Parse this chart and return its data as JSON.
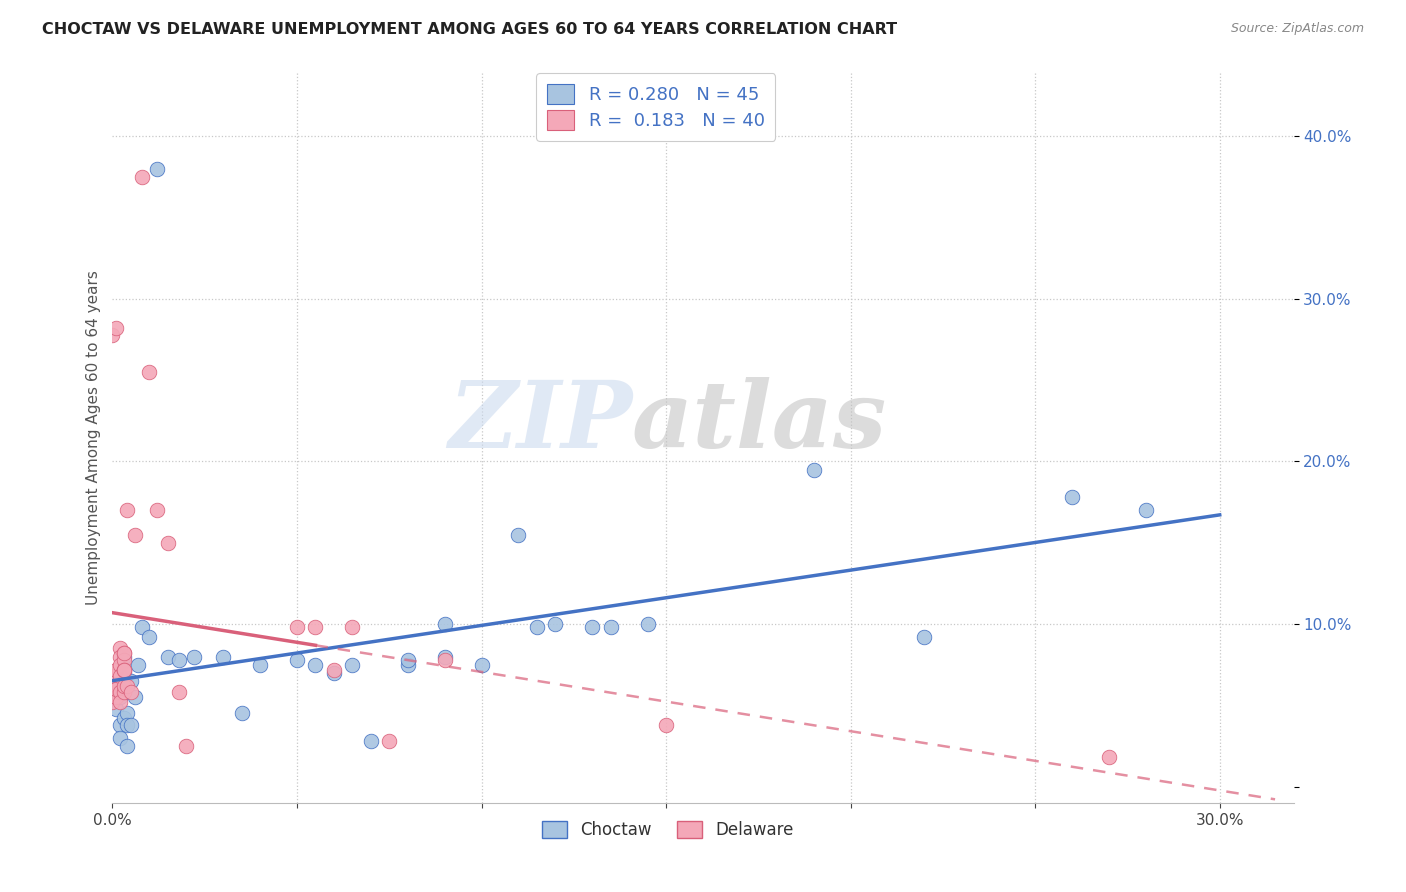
{
  "title": "CHOCTAW VS DELAWARE UNEMPLOYMENT AMONG AGES 60 TO 64 YEARS CORRELATION CHART",
  "source": "Source: ZipAtlas.com",
  "ylabel": "Unemployment Among Ages 60 to 64 years",
  "xlim": [
    0.0,
    0.32
  ],
  "ylim": [
    -0.01,
    0.44
  ],
  "xticks": [
    0.0,
    0.05,
    0.1,
    0.15,
    0.2,
    0.25,
    0.3
  ],
  "yticks": [
    0.0,
    0.1,
    0.2,
    0.3,
    0.4
  ],
  "background_color": "#ffffff",
  "grid_color": "#c8c8c8",
  "watermark_zip": "ZIP",
  "watermark_atlas": "atlas",
  "choctaw_color": "#a8c4e0",
  "delaware_color": "#f4a8b8",
  "choctaw_line_color": "#4472c4",
  "delaware_line_color": "#d9607a",
  "R_choctaw": 0.28,
  "N_choctaw": 45,
  "R_delaware": 0.183,
  "N_delaware": 40,
  "choctaw_points": [
    [
      0.001,
      0.058
    ],
    [
      0.001,
      0.048
    ],
    [
      0.002,
      0.038
    ],
    [
      0.002,
      0.03
    ],
    [
      0.002,
      0.055
    ],
    [
      0.003,
      0.058
    ],
    [
      0.003,
      0.042
    ],
    [
      0.003,
      0.07
    ],
    [
      0.003,
      0.08
    ],
    [
      0.004,
      0.045
    ],
    [
      0.004,
      0.038
    ],
    [
      0.004,
      0.025
    ],
    [
      0.005,
      0.038
    ],
    [
      0.005,
      0.065
    ],
    [
      0.006,
      0.055
    ],
    [
      0.007,
      0.075
    ],
    [
      0.008,
      0.098
    ],
    [
      0.01,
      0.092
    ],
    [
      0.012,
      0.38
    ],
    [
      0.015,
      0.08
    ],
    [
      0.018,
      0.078
    ],
    [
      0.022,
      0.08
    ],
    [
      0.03,
      0.08
    ],
    [
      0.035,
      0.045
    ],
    [
      0.04,
      0.075
    ],
    [
      0.05,
      0.078
    ],
    [
      0.055,
      0.075
    ],
    [
      0.06,
      0.07
    ],
    [
      0.065,
      0.075
    ],
    [
      0.07,
      0.028
    ],
    [
      0.08,
      0.075
    ],
    [
      0.08,
      0.078
    ],
    [
      0.09,
      0.08
    ],
    [
      0.09,
      0.1
    ],
    [
      0.1,
      0.075
    ],
    [
      0.11,
      0.155
    ],
    [
      0.115,
      0.098
    ],
    [
      0.12,
      0.1
    ],
    [
      0.13,
      0.098
    ],
    [
      0.135,
      0.098
    ],
    [
      0.145,
      0.1
    ],
    [
      0.19,
      0.195
    ],
    [
      0.22,
      0.092
    ],
    [
      0.26,
      0.178
    ],
    [
      0.28,
      0.17
    ]
  ],
  "delaware_points": [
    [
      0.0,
      0.278
    ],
    [
      0.0,
      0.068
    ],
    [
      0.0,
      0.052
    ],
    [
      0.001,
      0.282
    ],
    [
      0.001,
      0.06
    ],
    [
      0.001,
      0.055
    ],
    [
      0.001,
      0.072
    ],
    [
      0.001,
      0.06
    ],
    [
      0.002,
      0.058
    ],
    [
      0.002,
      0.052
    ],
    [
      0.002,
      0.085
    ],
    [
      0.002,
      0.08
    ],
    [
      0.002,
      0.075
    ],
    [
      0.002,
      0.068
    ],
    [
      0.003,
      0.058
    ],
    [
      0.003,
      0.072
    ],
    [
      0.003,
      0.082
    ],
    [
      0.003,
      0.062
    ],
    [
      0.003,
      0.078
    ],
    [
      0.003,
      0.072
    ],
    [
      0.003,
      0.082
    ],
    [
      0.003,
      0.072
    ],
    [
      0.004,
      0.062
    ],
    [
      0.004,
      0.17
    ],
    [
      0.005,
      0.058
    ],
    [
      0.006,
      0.155
    ],
    [
      0.008,
      0.375
    ],
    [
      0.01,
      0.255
    ],
    [
      0.012,
      0.17
    ],
    [
      0.015,
      0.15
    ],
    [
      0.018,
      0.058
    ],
    [
      0.02,
      0.025
    ],
    [
      0.05,
      0.098
    ],
    [
      0.055,
      0.098
    ],
    [
      0.06,
      0.072
    ],
    [
      0.065,
      0.098
    ],
    [
      0.075,
      0.028
    ],
    [
      0.09,
      0.078
    ],
    [
      0.15,
      0.038
    ],
    [
      0.27,
      0.018
    ]
  ]
}
